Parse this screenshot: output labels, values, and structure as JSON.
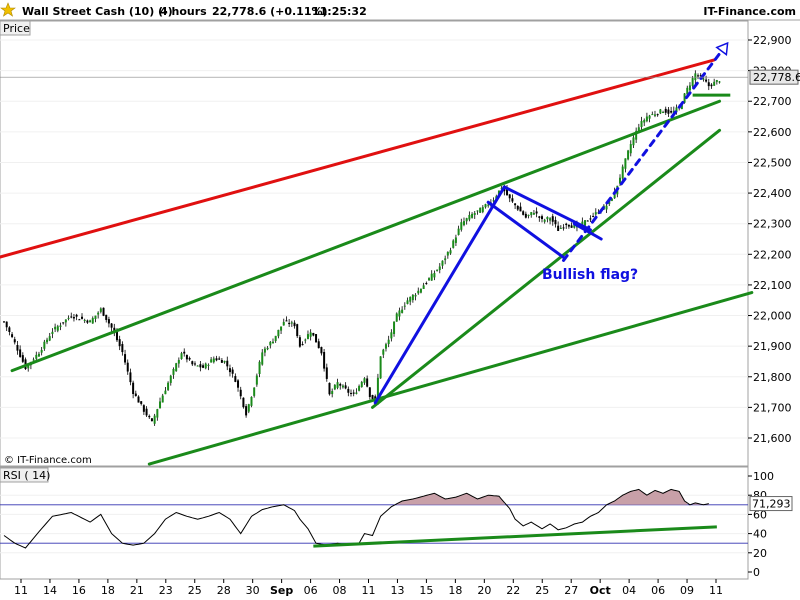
{
  "header": {
    "title": "Wall Street Cash (10) (-)",
    "timeframe": "4 hours",
    "price": "22,778.6 (+0.11%)",
    "time": "11:25:32",
    "brand": "IT-Finance.com"
  },
  "price_panel": {
    "label": "Price",
    "copyright": "© IT-Finance.com",
    "last_price_label": "22,778.6"
  },
  "rsi_panel": {
    "label": "RSI ( 14)",
    "last_value_label": "71,293"
  },
  "annotation": {
    "text": "Bullish flag?"
  },
  "colors": {
    "up_candle": "#1a8a1a",
    "down_candle": "#000000",
    "resistance": "#e01010",
    "channel": "#1a8a1a",
    "pattern": "#1010e0",
    "rsi_line": "#000000",
    "rsi_overbought_fill": "#c8a0a8"
  },
  "chart_data": {
    "type": "candlestick",
    "price_axis": {
      "ticks": [
        21600,
        21700,
        21800,
        21900,
        22000,
        22100,
        22200,
        22300,
        22400,
        22500,
        22600,
        22700,
        22800,
        22900
      ],
      "tick_labels": [
        "21,600",
        "21,700",
        "21,800",
        "21,900",
        "22,000",
        "22,100",
        "22,200",
        "22,300",
        "22,400",
        "22,500",
        "22,600",
        "22,700",
        "22,800",
        "22,900"
      ],
      "range": [
        21530,
        22950
      ]
    },
    "rsi_axis": {
      "ticks": [
        0,
        20,
        40,
        60,
        80,
        100
      ],
      "tick_labels": [
        "0",
        "20",
        "40",
        "60",
        "80",
        "100"
      ],
      "levels": [
        30,
        70
      ]
    },
    "x_axis": {
      "tick_labels": [
        "11",
        "14",
        "16",
        "18",
        "21",
        "23",
        "25",
        "28",
        "30",
        "Sep",
        "06",
        "08",
        "11",
        "13",
        "15",
        "18",
        "20",
        "22",
        "25",
        "27",
        "Oct",
        "04",
        "06",
        "09",
        "11"
      ],
      "bold_labels": [
        "Sep",
        "Oct"
      ]
    },
    "price_anchors": [
      [
        0,
        21980
      ],
      [
        4,
        21910
      ],
      [
        8,
        21830
      ],
      [
        13,
        21880
      ],
      [
        18,
        21950
      ],
      [
        25,
        22000
      ],
      [
        32,
        21980
      ],
      [
        36,
        22020
      ],
      [
        40,
        21960
      ],
      [
        44,
        21880
      ],
      [
        48,
        21750
      ],
      [
        52,
        21690
      ],
      [
        55,
        21650
      ],
      [
        58,
        21720
      ],
      [
        62,
        21800
      ],
      [
        66,
        21880
      ],
      [
        70,
        21840
      ],
      [
        74,
        21830
      ],
      [
        78,
        21860
      ],
      [
        82,
        21850
      ],
      [
        86,
        21790
      ],
      [
        90,
        21680
      ],
      [
        93,
        21770
      ],
      [
        96,
        21880
      ],
      [
        100,
        21920
      ],
      [
        104,
        21980
      ],
      [
        108,
        21970
      ],
      [
        110,
        21900
      ],
      [
        114,
        21950
      ],
      [
        118,
        21880
      ],
      [
        121,
        21740
      ],
      [
        124,
        21780
      ],
      [
        128,
        21750
      ],
      [
        130,
        21740
      ],
      [
        134,
        21800
      ],
      [
        136,
        21740
      ],
      [
        138,
        21720
      ],
      [
        140,
        21870
      ],
      [
        143,
        21920
      ],
      [
        146,
        22000
      ],
      [
        150,
        22050
      ],
      [
        154,
        22080
      ],
      [
        158,
        22120
      ],
      [
        162,
        22160
      ],
      [
        166,
        22220
      ],
      [
        170,
        22300
      ],
      [
        174,
        22330
      ],
      [
        178,
        22350
      ],
      [
        182,
        22380
      ],
      [
        185,
        22420
      ],
      [
        188,
        22380
      ],
      [
        191,
        22350
      ],
      [
        194,
        22320
      ],
      [
        197,
        22340
      ],
      [
        200,
        22310
      ],
      [
        203,
        22320
      ],
      [
        206,
        22280
      ],
      [
        209,
        22300
      ],
      [
        212,
        22290
      ],
      [
        215,
        22300
      ],
      [
        218,
        22320
      ],
      [
        221,
        22340
      ],
      [
        224,
        22360
      ],
      [
        227,
        22400
      ],
      [
        230,
        22480
      ],
      [
        233,
        22560
      ],
      [
        236,
        22620
      ],
      [
        239,
        22650
      ],
      [
        242,
        22660
      ],
      [
        245,
        22670
      ],
      [
        248,
        22660
      ],
      [
        251,
        22680
      ],
      [
        254,
        22740
      ],
      [
        257,
        22790
      ],
      [
        260,
        22770
      ],
      [
        262,
        22750
      ],
      [
        264,
        22760
      ],
      [
        266,
        22770
      ]
    ],
    "rsi_anchors": [
      [
        0,
        38
      ],
      [
        4,
        30
      ],
      [
        8,
        25
      ],
      [
        13,
        42
      ],
      [
        18,
        58
      ],
      [
        25,
        62
      ],
      [
        32,
        52
      ],
      [
        36,
        60
      ],
      [
        40,
        40
      ],
      [
        44,
        30
      ],
      [
        48,
        28
      ],
      [
        52,
        30
      ],
      [
        56,
        40
      ],
      [
        60,
        55
      ],
      [
        64,
        62
      ],
      [
        68,
        58
      ],
      [
        72,
        55
      ],
      [
        76,
        58
      ],
      [
        80,
        62
      ],
      [
        84,
        55
      ],
      [
        88,
        40
      ],
      [
        92,
        58
      ],
      [
        96,
        65
      ],
      [
        100,
        68
      ],
      [
        104,
        70
      ],
      [
        108,
        64
      ],
      [
        110,
        55
      ],
      [
        113,
        45
      ],
      [
        116,
        30
      ],
      [
        120,
        28
      ],
      [
        124,
        30
      ],
      [
        128,
        28
      ],
      [
        132,
        30
      ],
      [
        134,
        40
      ],
      [
        137,
        38
      ],
      [
        140,
        58
      ],
      [
        144,
        68
      ],
      [
        148,
        74
      ],
      [
        152,
        76
      ],
      [
        156,
        79
      ],
      [
        160,
        82
      ],
      [
        164,
        76
      ],
      [
        168,
        78
      ],
      [
        172,
        82
      ],
      [
        176,
        76
      ],
      [
        180,
        80
      ],
      [
        184,
        79
      ],
      [
        188,
        66
      ],
      [
        190,
        55
      ],
      [
        193,
        48
      ],
      [
        196,
        52
      ],
      [
        200,
        45
      ],
      [
        203,
        50
      ],
      [
        206,
        44
      ],
      [
        209,
        46
      ],
      [
        212,
        50
      ],
      [
        215,
        52
      ],
      [
        218,
        58
      ],
      [
        221,
        62
      ],
      [
        224,
        70
      ],
      [
        227,
        74
      ],
      [
        230,
        80
      ],
      [
        233,
        84
      ],
      [
        236,
        86
      ],
      [
        239,
        80
      ],
      [
        242,
        85
      ],
      [
        245,
        82
      ],
      [
        248,
        86
      ],
      [
        251,
        84
      ],
      [
        253,
        74
      ],
      [
        255,
        70
      ],
      [
        257,
        72
      ],
      [
        260,
        70
      ],
      [
        262,
        71.3
      ]
    ],
    "trendlines": [
      {
        "name": "resistance",
        "color": "#e01010",
        "from": [
          -4,
          22185
        ],
        "to": [
          264,
          22835
        ]
      },
      {
        "name": "channel-upper",
        "color": "#1a8a1a",
        "from": [
          3,
          21820
        ],
        "to": [
          266,
          22700
        ]
      },
      {
        "name": "channel-lower",
        "color": "#1a8a1a",
        "from": [
          54,
          21515
        ],
        "to": [
          278,
          22075
        ]
      },
      {
        "name": "support-steep",
        "color": "#1a8a1a",
        "from": [
          137,
          21700
        ],
        "to": [
          266,
          22605
        ]
      },
      {
        "name": "flag-pole",
        "color": "#1010e0",
        "from": [
          138,
          21715
        ],
        "to": [
          186,
          22420
        ]
      },
      {
        "name": "flag-top",
        "color": "#1010e0",
        "from": [
          186,
          22420
        ],
        "to": [
          218,
          22280
        ]
      },
      {
        "name": "flag-bottom",
        "color": "#1010e0",
        "from": [
          180,
          22370
        ],
        "to": [
          208,
          22190
        ]
      },
      {
        "name": "flag-bottom-short",
        "color": "#1010e0",
        "from": [
          212,
          22300
        ],
        "to": [
          222,
          22250
        ]
      },
      {
        "name": "breakout-projection",
        "color": "#1010e0",
        "dashed": true,
        "from": [
          208,
          22180
        ],
        "to": [
          269,
          22890
        ]
      }
    ],
    "horizontal_levels": [
      {
        "name": "recent-support",
        "color": "#1a8a1a",
        "value": 22720,
        "from": 256,
        "to": 270
      },
      {
        "name": "last-price",
        "color": "#888888",
        "value": 22778.6,
        "from": 0,
        "to": 286
      }
    ],
    "rsi_trendline": {
      "color": "#1a8a1a",
      "from": [
        115,
        27
      ],
      "to": [
        265,
        47
      ]
    },
    "last_price": 22778.6,
    "last_rsi": 71.293
  }
}
